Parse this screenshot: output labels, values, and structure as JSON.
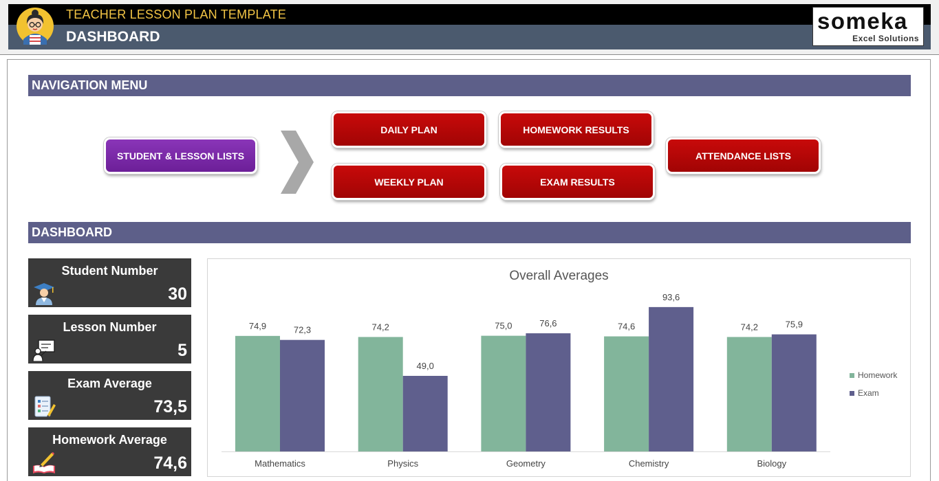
{
  "header": {
    "app_title": "TEACHER LESSON PLAN TEMPLATE",
    "page_title": "DASHBOARD",
    "logo_main": "someka",
    "logo_sub": "Excel Solutions"
  },
  "navigation": {
    "section_title": "NAVIGATION MENU",
    "buttons": {
      "student_lists": "STUDENT & LESSON LISTS",
      "daily_plan": "DAILY PLAN",
      "weekly_plan": "WEEKLY PLAN",
      "homework_results": "HOMEWORK RESULTS",
      "exam_results": "EXAM RESULTS",
      "attendance_lists": "ATTENDANCE LISTS"
    }
  },
  "dashboard": {
    "section_title": "DASHBOARD",
    "kpis": [
      {
        "label": "Student Number",
        "value": "30",
        "icon": "graduate-icon"
      },
      {
        "label": "Lesson Number",
        "value": "5",
        "icon": "teacher-board-icon"
      },
      {
        "label": "Exam Average",
        "value": "73,5",
        "icon": "exam-paper-icon"
      },
      {
        "label": "Homework Average",
        "value": "74,6",
        "icon": "book-pencil-icon"
      }
    ]
  },
  "colors": {
    "homework": "#82b59b",
    "exam": "#5f5f8d",
    "section_bar": "#5d5f89",
    "button_red": "#b40707",
    "button_purple": "#7a2aa8"
  },
  "chart_data": {
    "type": "bar",
    "title": "Overall Averages",
    "categories": [
      "Mathematics",
      "Physics",
      "Geometry",
      "Chemistry",
      "Biology"
    ],
    "series": [
      {
        "name": "Homework",
        "values": [
          74.9,
          74.2,
          75.0,
          74.6,
          74.2
        ],
        "labels": [
          "74,9",
          "74,2",
          "75,0",
          "74,6",
          "74,2"
        ]
      },
      {
        "name": "Exam",
        "values": [
          72.3,
          49.0,
          76.6,
          93.6,
          75.9
        ],
        "labels": [
          "72,3",
          "49,0",
          "76,6",
          "93,6",
          "75,9"
        ]
      }
    ],
    "ylim": [
      0,
      100
    ],
    "grid": false,
    "legend": "right"
  }
}
